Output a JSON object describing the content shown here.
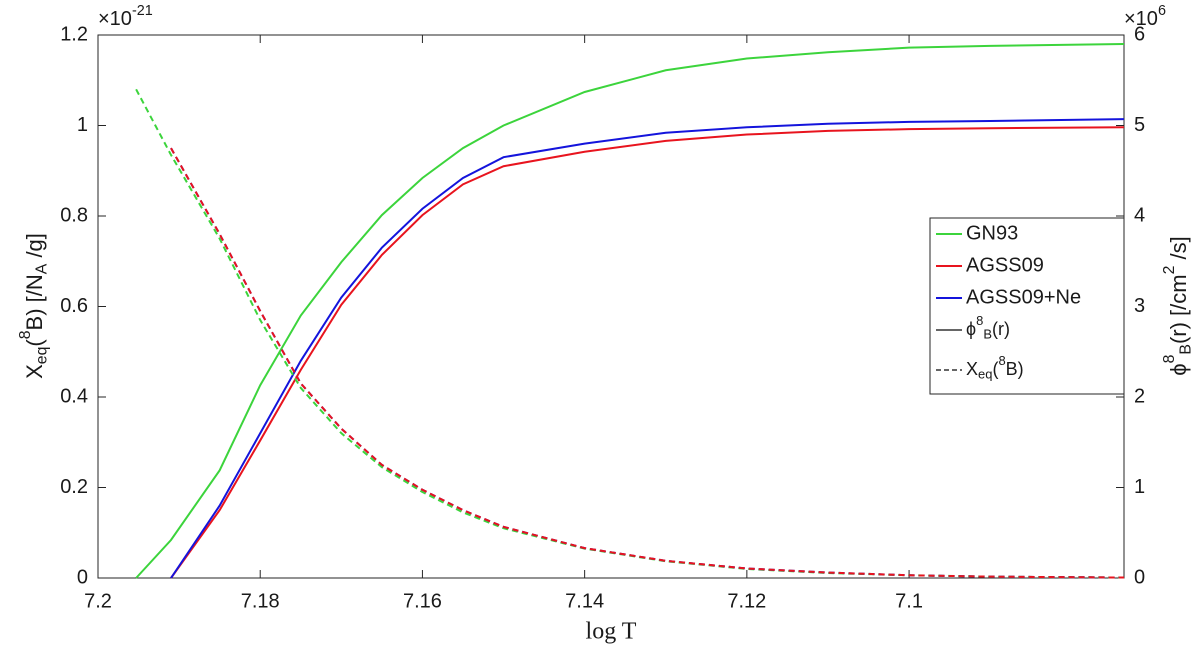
{
  "chart_data": {
    "type": "line",
    "xlabel": "log T",
    "ylabel": [
      {
        "text": "X"
      },
      {
        "text": "eq",
        "sub": true
      },
      {
        "text": "("
      },
      {
        "text": "8",
        "sup": true
      },
      {
        "text": "B) [/N"
      },
      {
        "text": "A",
        "sub": true
      },
      {
        "text": " /g]"
      }
    ],
    "y2label": [
      {
        "text": "ϕ"
      },
      {
        "text": "8",
        "sup": true
      },
      {
        "text": "B",
        "sub": true
      },
      {
        "text": "(r) [/cm"
      },
      {
        "text": "2",
        "sup": true
      },
      {
        "text": " /s]"
      }
    ],
    "y_multiplier": [
      {
        "text": "×10"
      },
      {
        "text": "-21",
        "sup": true
      }
    ],
    "y2_multiplier": [
      {
        "text": "×10"
      },
      {
        "text": "6",
        "sup": true
      }
    ],
    "x": [
      7.1953,
      7.191,
      7.185,
      7.18,
      7.175,
      7.17,
      7.165,
      7.16,
      7.155,
      7.15,
      7.14,
      7.13,
      7.12,
      7.11,
      7.1,
      7.09,
      7.0735
    ],
    "xlim": [
      7.2,
      7.0735
    ],
    "xticks": [
      7.2,
      7.18,
      7.16,
      7.14,
      7.12,
      7.1
    ],
    "ylim": [
      0,
      1.2
    ],
    "yticks": [
      0,
      0.2,
      0.4,
      0.6,
      0.8,
      1,
      1.2
    ],
    "y2lim": [
      0,
      6
    ],
    "y2ticks": [
      0,
      1,
      2,
      3,
      4,
      5,
      6
    ],
    "legend": "right",
    "series": [
      {
        "name": "GN93",
        "color": "#3cd43c",
        "axis": "y2",
        "values": [
          0,
          0.42,
          1.19,
          2.13,
          2.9,
          3.49,
          4.01,
          4.42,
          4.75,
          5.0,
          5.37,
          5.61,
          5.74,
          5.81,
          5.86,
          5.88,
          5.9
        ]
      },
      {
        "name": "AGSS09",
        "color": "#e8141e",
        "axis": "y2",
        "values": [
          null,
          0,
          0.75,
          1.52,
          2.3,
          3.02,
          3.57,
          4.01,
          4.35,
          4.55,
          4.71,
          4.83,
          4.9,
          4.94,
          4.96,
          4.97,
          4.98
        ]
      },
      {
        "name": "AGSS09+Ne",
        "color": "#1414dc",
        "axis": "y2",
        "values": [
          null,
          0,
          0.8,
          1.6,
          2.4,
          3.1,
          3.65,
          4.08,
          4.42,
          4.65,
          4.8,
          4.92,
          4.98,
          5.02,
          5.04,
          5.05,
          5.07
        ]
      },
      {
        "color": "#3cd43c",
        "dash": true,
        "values": [
          1.08,
          0.935,
          0.75,
          0.57,
          0.42,
          0.32,
          0.245,
          0.19,
          0.145,
          0.11,
          0.065,
          0.037,
          0.02,
          0.011,
          0.006,
          0.003,
          0.001
        ]
      },
      {
        "color": "#1414dc",
        "dash": true,
        "values": [
          null,
          0.95,
          0.76,
          0.59,
          0.43,
          0.33,
          0.25,
          0.195,
          0.15,
          0.113,
          0.066,
          0.038,
          0.021,
          0.012,
          0.006,
          0.003,
          0.001
        ]
      },
      {
        "color": "#e8141e",
        "dash": true,
        "values": [
          null,
          0.95,
          0.76,
          0.59,
          0.43,
          0.33,
          0.25,
          0.195,
          0.15,
          0.113,
          0.066,
          0.038,
          0.021,
          0.012,
          0.006,
          0.003,
          0.001
        ]
      }
    ],
    "legend_styles": [
      {
        "label": [
          {
            "text": "ϕ"
          },
          {
            "text": "8",
            "sup": true
          },
          {
            "text": "B",
            "sub": true
          },
          {
            "text": "(r)"
          }
        ],
        "color": "#333333"
      },
      {
        "label": [
          {
            "text": "X"
          },
          {
            "text": "eq",
            "sub": true
          },
          {
            "text": "("
          },
          {
            "text": "8",
            "sup": true
          },
          {
            "text": "B)"
          }
        ],
        "color": "#333333",
        "dash": true
      }
    ]
  }
}
